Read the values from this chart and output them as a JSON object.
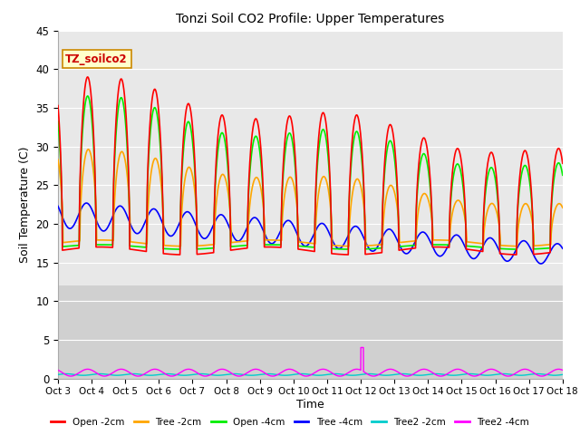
{
  "title": "Tonzi Soil CO2 Profile: Upper Temperatures",
  "xlabel": "Time",
  "ylabel": "Soil Temperature (C)",
  "watermark": "TZ_soilco2",
  "ylim": [
    0,
    45
  ],
  "xlim": [
    0,
    15
  ],
  "yticks": [
    0,
    5,
    10,
    15,
    20,
    25,
    30,
    35,
    40,
    45
  ],
  "xtick_labels": [
    "Oct 3",
    "Oct 4",
    "Oct 5",
    "Oct 6",
    "Oct 7",
    "Oct 8",
    "Oct 9",
    "Oct 10",
    "Oct 11",
    "Oct 12",
    "Oct 13",
    "Oct 14",
    "Oct 15",
    "Oct 16",
    "Oct 17",
    "Oct 18"
  ],
  "legend_labels": [
    "Open -2cm",
    "Tree -2cm",
    "Open -4cm",
    "Tree -4cm",
    "Tree2 -2cm",
    "Tree2 -4cm"
  ],
  "legend_colors": [
    "#ff0000",
    "#ffa500",
    "#00ee00",
    "#0000ff",
    "#00cccc",
    "#ff00ff"
  ],
  "bg_upper_color": "#e8e8e8",
  "bg_lower_color": "#d0d0d0",
  "bg_split": 12,
  "grid_color": "#ffffff"
}
